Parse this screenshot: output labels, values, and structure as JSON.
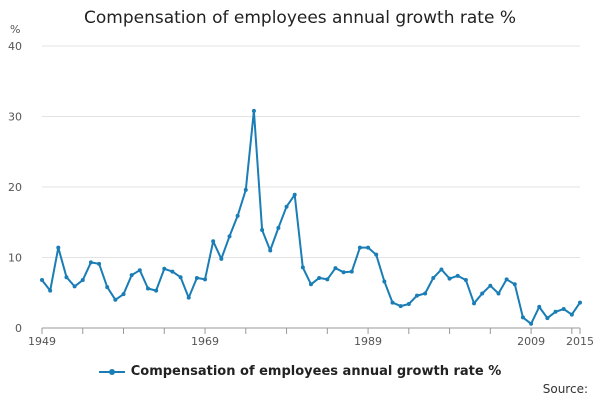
{
  "chart_data": {
    "type": "line",
    "title": "Compensation of employees annual growth rate %",
    "ylabel": "%",
    "xlabel": "",
    "ylim": [
      0,
      40
    ],
    "xlim": [
      1949,
      2015
    ],
    "y_ticks": [
      0,
      10,
      20,
      30,
      40
    ],
    "x_tick_labels": [
      "1949",
      "1969",
      "1989",
      "2009",
      "2015"
    ],
    "grid": true,
    "legend_position": "bottom",
    "series": [
      {
        "name": "Compensation of employees annual growth rate %",
        "color": "#1a7db6",
        "x": [
          1949,
          1950,
          1951,
          1952,
          1953,
          1954,
          1955,
          1956,
          1957,
          1958,
          1959,
          1960,
          1961,
          1962,
          1963,
          1964,
          1965,
          1966,
          1967,
          1968,
          1969,
          1970,
          1971,
          1972,
          1973,
          1974,
          1975,
          1976,
          1977,
          1978,
          1979,
          1980,
          1981,
          1982,
          1983,
          1984,
          1985,
          1986,
          1987,
          1988,
          1989,
          1990,
          1991,
          1992,
          1993,
          1994,
          1995,
          1996,
          1997,
          1998,
          1999,
          2000,
          2001,
          2002,
          2003,
          2004,
          2005,
          2006,
          2007,
          2008,
          2009,
          2010,
          2011,
          2012,
          2013,
          2014,
          2015
        ],
        "values": [
          6.8,
          5.3,
          11.4,
          7.2,
          5.9,
          6.8,
          9.3,
          9.1,
          5.8,
          4.0,
          4.8,
          7.5,
          8.2,
          5.6,
          5.3,
          8.4,
          8.0,
          7.2,
          4.3,
          7.1,
          6.9,
          12.3,
          9.8,
          13.0,
          15.9,
          19.6,
          30.8,
          13.9,
          11.0,
          14.2,
          17.2,
          18.9,
          8.6,
          6.2,
          7.1,
          6.9,
          8.5,
          7.9,
          8.0,
          11.4,
          11.4,
          10.4,
          6.6,
          3.6,
          3.1,
          3.4,
          4.6,
          4.9,
          7.1,
          8.3,
          7.0,
          7.4,
          6.8,
          3.5,
          4.9,
          6.0,
          4.9,
          6.9,
          6.2,
          1.5,
          0.6,
          3.0,
          1.4,
          2.3,
          2.7,
          1.9,
          3.6
        ]
      }
    ]
  },
  "legend": {
    "label": "Compensation of employees annual growth rate %"
  },
  "source_label": "Source:"
}
